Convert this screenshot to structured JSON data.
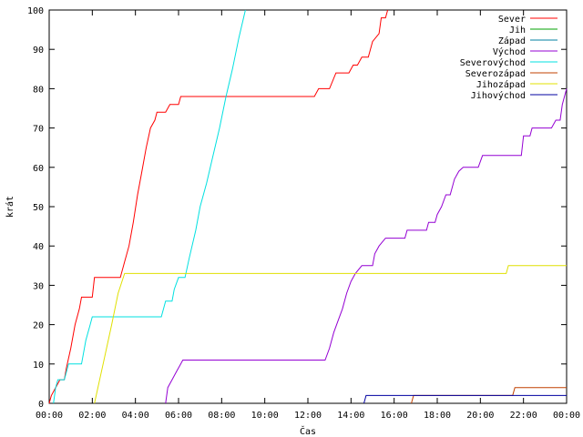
{
  "chart_data": {
    "type": "line",
    "xlabel": "Čas",
    "ylabel": "krát",
    "xlim": [
      0,
      24
    ],
    "ylim": [
      0,
      100
    ],
    "xticks": [
      "00:00",
      "02:00",
      "04:00",
      "06:00",
      "08:00",
      "10:00",
      "12:00",
      "14:00",
      "16:00",
      "18:00",
      "20:00",
      "22:00",
      "00:00"
    ],
    "yticks": [
      0,
      10,
      20,
      30,
      40,
      50,
      60,
      70,
      80,
      90,
      100
    ],
    "grid": false,
    "legend_position": "top-right",
    "series": [
      {
        "name": "Sever",
        "color": "#ff0000",
        "points": [
          [
            0,
            0
          ],
          [
            0.1,
            2
          ],
          [
            0.3,
            4
          ],
          [
            0.5,
            6
          ],
          [
            0.7,
            6
          ],
          [
            0.8,
            9
          ],
          [
            1.0,
            14
          ],
          [
            1.2,
            20
          ],
          [
            1.4,
            24
          ],
          [
            1.5,
            27
          ],
          [
            1.6,
            27
          ],
          [
            2.0,
            27
          ],
          [
            2.1,
            32
          ],
          [
            2.2,
            32
          ],
          [
            3.3,
            32
          ],
          [
            3.5,
            36
          ],
          [
            3.7,
            40
          ],
          [
            3.9,
            46
          ],
          [
            4.1,
            53
          ],
          [
            4.3,
            59
          ],
          [
            4.5,
            65
          ],
          [
            4.7,
            70
          ],
          [
            4.9,
            72
          ],
          [
            5.0,
            74
          ],
          [
            5.4,
            74
          ],
          [
            5.6,
            76
          ],
          [
            6.0,
            76
          ],
          [
            6.1,
            78
          ],
          [
            12.3,
            78
          ],
          [
            12.5,
            80
          ],
          [
            13.0,
            80
          ],
          [
            13.3,
            84
          ],
          [
            13.9,
            84
          ],
          [
            14.1,
            86
          ],
          [
            14.3,
            86
          ],
          [
            14.5,
            88
          ],
          [
            14.8,
            88
          ],
          [
            15.0,
            92
          ],
          [
            15.3,
            94
          ],
          [
            15.4,
            98
          ],
          [
            15.6,
            98
          ],
          [
            15.7,
            100
          ]
        ]
      },
      {
        "name": "Jih",
        "color": "#00a000",
        "points": []
      },
      {
        "name": "Západ",
        "color": "#0080a0",
        "points": []
      },
      {
        "name": "Východ",
        "color": "#9400d3",
        "points": [
          [
            5.4,
            0
          ],
          [
            5.5,
            4
          ],
          [
            5.7,
            6
          ],
          [
            5.9,
            8
          ],
          [
            6.1,
            10
          ],
          [
            6.2,
            11
          ],
          [
            12.8,
            11
          ],
          [
            13.0,
            14
          ],
          [
            13.2,
            18
          ],
          [
            13.4,
            21
          ],
          [
            13.6,
            24
          ],
          [
            13.8,
            28
          ],
          [
            14.0,
            31
          ],
          [
            14.2,
            33
          ],
          [
            14.5,
            35
          ],
          [
            15.0,
            35
          ],
          [
            15.1,
            38
          ],
          [
            15.3,
            40
          ],
          [
            15.6,
            42
          ],
          [
            16.5,
            42
          ],
          [
            16.6,
            44
          ],
          [
            17.5,
            44
          ],
          [
            17.6,
            46
          ],
          [
            17.9,
            46
          ],
          [
            18.0,
            48
          ],
          [
            18.2,
            50
          ],
          [
            18.4,
            53
          ],
          [
            18.6,
            53
          ],
          [
            18.8,
            57
          ],
          [
            19.0,
            59
          ],
          [
            19.2,
            60
          ],
          [
            19.9,
            60
          ],
          [
            20.1,
            63
          ],
          [
            21.9,
            63
          ],
          [
            22.0,
            68
          ],
          [
            22.3,
            68
          ],
          [
            22.4,
            70
          ],
          [
            23.3,
            70
          ],
          [
            23.5,
            72
          ],
          [
            23.7,
            72
          ],
          [
            23.8,
            76
          ],
          [
            24.0,
            80
          ]
        ]
      },
      {
        "name": "Severovýchod",
        "color": "#00e0e0",
        "points": [
          [
            0.2,
            0
          ],
          [
            0.3,
            4
          ],
          [
            0.4,
            6
          ],
          [
            0.7,
            6
          ],
          [
            0.9,
            10
          ],
          [
            1.5,
            10
          ],
          [
            1.7,
            16
          ],
          [
            1.9,
            20
          ],
          [
            2.0,
            22
          ],
          [
            5.2,
            22
          ],
          [
            5.4,
            26
          ],
          [
            5.7,
            26
          ],
          [
            5.8,
            29
          ],
          [
            6.0,
            32
          ],
          [
            6.3,
            32
          ],
          [
            6.5,
            37
          ],
          [
            6.8,
            44
          ],
          [
            7.0,
            50
          ],
          [
            7.3,
            56
          ],
          [
            7.6,
            63
          ],
          [
            7.9,
            70
          ],
          [
            8.2,
            78
          ],
          [
            8.5,
            85
          ],
          [
            8.8,
            93
          ],
          [
            9.1,
            100
          ]
        ]
      },
      {
        "name": "Severozápad",
        "color": "#c04000",
        "points": [
          [
            16.8,
            0
          ],
          [
            16.9,
            2
          ],
          [
            21.5,
            2
          ],
          [
            21.6,
            4
          ],
          [
            24.0,
            4
          ]
        ]
      },
      {
        "name": "Jihozápad",
        "color": "#e0e000",
        "points": [
          [
            2.1,
            0
          ],
          [
            2.5,
            10
          ],
          [
            2.9,
            20
          ],
          [
            3.2,
            28
          ],
          [
            3.5,
            33
          ],
          [
            21.2,
            33
          ],
          [
            21.3,
            35
          ],
          [
            24.0,
            35
          ]
        ]
      },
      {
        "name": "Jihovýchod",
        "color": "#0000a0",
        "points": [
          [
            14.6,
            0
          ],
          [
            14.7,
            2
          ],
          [
            24.0,
            2
          ]
        ]
      }
    ]
  }
}
